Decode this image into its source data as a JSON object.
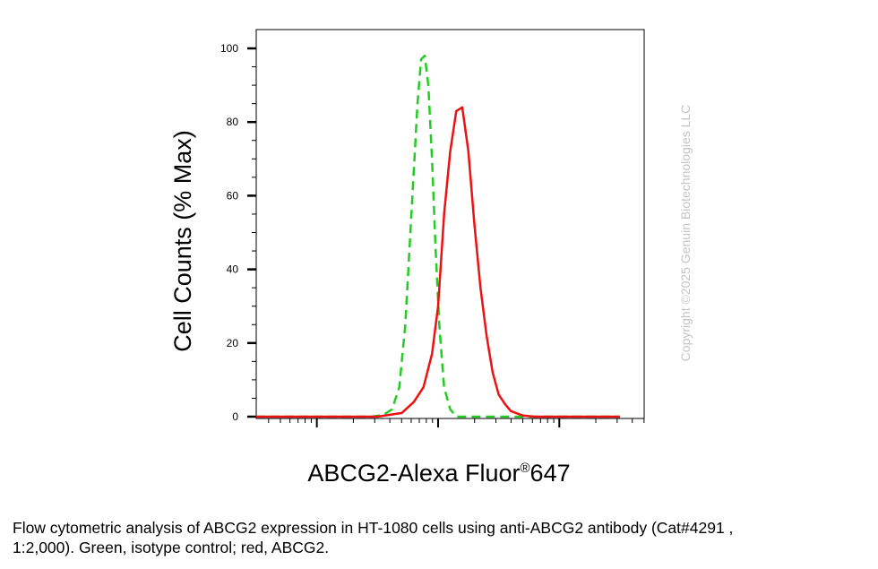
{
  "chart_data": {
    "type": "line",
    "title": "",
    "xlabel": "ABCG2-Alexa Fluor",
    "xlabel_sup": "®",
    "xlabel_suffix": "647",
    "ylabel": "Cell Counts (% Max)",
    "xscale": "log",
    "ylim": [
      0,
      100
    ],
    "yticks": [
      "0",
      "20",
      "40",
      "60",
      "80",
      "100"
    ],
    "x_tick_labels_shown": false,
    "grid": false,
    "legend": "none",
    "series": [
      {
        "color": "#22cc22",
        "style": "dashed",
        "x": [
          -0.5,
          0.2,
          0.45,
          0.55,
          0.62,
          0.68,
          0.73,
          0.78,
          0.83,
          0.86,
          0.89,
          0.92,
          0.95,
          0.98,
          1.01,
          1.05,
          1.1,
          1.15,
          1.25,
          1.5,
          2.0,
          2.5
        ],
        "y": [
          0,
          0,
          0,
          0.5,
          2,
          8,
          25,
          55,
          85,
          97,
          98,
          90,
          70,
          45,
          25,
          8,
          2,
          0,
          0,
          0,
          0,
          0
        ]
      },
      {
        "color": "#ee1111",
        "style": "solid",
        "x": [
          -0.5,
          0.5,
          0.7,
          0.8,
          0.88,
          0.95,
          1.0,
          1.05,
          1.1,
          1.15,
          1.2,
          1.25,
          1.3,
          1.35,
          1.4,
          1.45,
          1.5,
          1.55,
          1.6,
          1.7,
          1.8,
          2.0,
          2.5
        ],
        "y": [
          0,
          0,
          1,
          4,
          8,
          17,
          30,
          55,
          72,
          83,
          84,
          72,
          52,
          35,
          22,
          12,
          6,
          3.5,
          1.5,
          0.3,
          0,
          0,
          0
        ]
      }
    ]
  },
  "caption": "Flow cytometric analysis of ABCG2 expression in HT-1080 cells using anti-ABCG2 antibody (Cat#4291 ,\n1:2,000). Green, isotype control; red, ABCG2.",
  "watermark": "Copyright ©2025 Genuin Biotechnologies LLC"
}
